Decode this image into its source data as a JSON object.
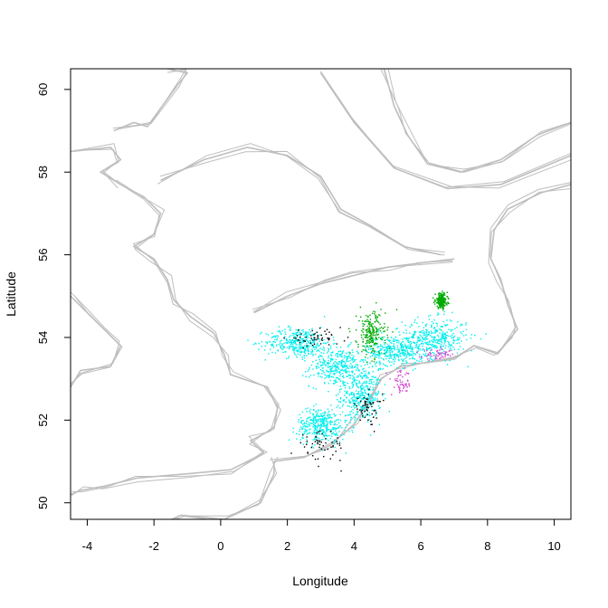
{
  "chart_data": {
    "type": "scatter",
    "title": "",
    "xlabel": "Longitude",
    "ylabel": "Latitude",
    "xlim": [
      -4.5,
      10.5
    ],
    "ylim": [
      49.6,
      60.5
    ],
    "x_ticks": [
      -4,
      -2,
      0,
      2,
      4,
      6,
      8,
      10
    ],
    "y_ticks": [
      50,
      52,
      54,
      56,
      58,
      60
    ],
    "grid": false,
    "legend": "none",
    "colors": {
      "coastline_bathymetry": "#bebebe",
      "cyan_points": "#00eeee",
      "green_points": "#00aa00",
      "magenta_points": "#d040d0",
      "black_points": "#000000"
    },
    "coastline_lines": [
      {
        "name": "scotland-east-coast",
        "points": [
          [
            -3.0,
            57.7
          ],
          [
            -2.3,
            57.4
          ],
          [
            -1.8,
            57.0
          ],
          [
            -2.0,
            56.5
          ],
          [
            -2.6,
            56.2
          ],
          [
            -2.0,
            55.9
          ],
          [
            -1.6,
            55.4
          ],
          [
            -1.4,
            54.9
          ],
          [
            -0.9,
            54.5
          ],
          [
            -0.2,
            54.1
          ],
          [
            0.1,
            53.6
          ],
          [
            0.3,
            53.1
          ],
          [
            1.4,
            52.8
          ],
          [
            1.7,
            52.3
          ],
          [
            1.6,
            51.8
          ],
          [
            0.9,
            51.5
          ],
          [
            1.3,
            51.2
          ],
          [
            0.3,
            50.8
          ],
          [
            -1.0,
            50.7
          ],
          [
            -2.5,
            50.6
          ],
          [
            -3.5,
            50.4
          ],
          [
            -4.2,
            50.3
          ],
          [
            -4.5,
            50.2
          ]
        ]
      },
      {
        "name": "north-scotland",
        "points": [
          [
            -4.5,
            58.5
          ],
          [
            -3.3,
            58.6
          ],
          [
            -3.0,
            58.3
          ],
          [
            -3.6,
            58.0
          ],
          [
            -3.0,
            57.7
          ]
        ]
      },
      {
        "name": "orkney-shetland",
        "points": [
          [
            -3.2,
            59.0
          ],
          [
            -2.6,
            59.2
          ],
          [
            -2.2,
            59.1
          ],
          [
            -1.3,
            60.1
          ],
          [
            -1.0,
            60.4
          ],
          [
            -1.6,
            60.5
          ]
        ]
      },
      {
        "name": "netherlands-germany-coast",
        "points": [
          [
            1.6,
            51.0
          ],
          [
            2.5,
            51.1
          ],
          [
            3.3,
            51.4
          ],
          [
            4.0,
            51.9
          ],
          [
            4.5,
            52.5
          ],
          [
            4.8,
            53.0
          ],
          [
            5.4,
            53.3
          ],
          [
            6.2,
            53.4
          ],
          [
            7.0,
            53.5
          ],
          [
            7.6,
            53.8
          ],
          [
            8.3,
            53.6
          ],
          [
            8.6,
            53.9
          ],
          [
            8.9,
            54.2
          ],
          [
            8.6,
            54.8
          ],
          [
            8.4,
            55.4
          ],
          [
            8.1,
            55.9
          ],
          [
            8.2,
            56.6
          ],
          [
            8.6,
            57.1
          ],
          [
            9.6,
            57.5
          ],
          [
            10.5,
            57.7
          ]
        ]
      },
      {
        "name": "norway-coast",
        "points": [
          [
            4.9,
            60.5
          ],
          [
            5.2,
            59.6
          ],
          [
            5.6,
            58.9
          ],
          [
            6.2,
            58.2
          ],
          [
            7.2,
            58.0
          ],
          [
            8.4,
            58.3
          ],
          [
            9.5,
            58.9
          ],
          [
            10.5,
            59.2
          ]
        ]
      },
      {
        "name": "norwegian-trench",
        "points": [
          [
            3.0,
            60.4
          ],
          [
            4.0,
            59.2
          ],
          [
            5.2,
            58.1
          ],
          [
            6.8,
            57.6
          ],
          [
            8.4,
            57.7
          ],
          [
            10.5,
            58.4
          ]
        ]
      },
      {
        "name": "dogger-bank",
        "points": [
          [
            1.0,
            54.6
          ],
          [
            2.0,
            55.0
          ],
          [
            3.0,
            55.3
          ],
          [
            4.0,
            55.5
          ],
          [
            5.0,
            55.7
          ],
          [
            6.0,
            55.8
          ],
          [
            7.0,
            55.9
          ]
        ]
      },
      {
        "name": "central-contour",
        "points": [
          [
            -1.8,
            57.8
          ],
          [
            -0.5,
            58.3
          ],
          [
            0.8,
            58.6
          ],
          [
            2.0,
            58.4
          ],
          [
            3.0,
            57.9
          ],
          [
            3.6,
            57.1
          ],
          [
            4.5,
            56.7
          ],
          [
            5.5,
            56.2
          ],
          [
            6.6,
            56.0
          ]
        ]
      },
      {
        "name": "irish-sea-west",
        "points": [
          [
            -4.5,
            55.0
          ],
          [
            -4.0,
            54.6
          ],
          [
            -3.5,
            54.2
          ],
          [
            -3.0,
            53.8
          ],
          [
            -3.3,
            53.3
          ],
          [
            -4.2,
            53.2
          ],
          [
            -4.5,
            52.8
          ]
        ]
      },
      {
        "name": "channel-south",
        "points": [
          [
            -4.5,
            48.8
          ],
          [
            -2.0,
            49.4
          ],
          [
            -1.2,
            49.7
          ],
          [
            0.1,
            49.6
          ],
          [
            1.2,
            50.0
          ],
          [
            1.6,
            50.7
          ],
          [
            1.6,
            51.0
          ]
        ]
      }
    ],
    "point_clouds": [
      {
        "color_key": "cyan_points",
        "count": 2200,
        "regions": [
          [
            4.2,
            52.6,
            0.5,
            0.55
          ],
          [
            3.5,
            53.3,
            0.7,
            0.4
          ],
          [
            2.3,
            53.9,
            0.8,
            0.3
          ],
          [
            6.4,
            54.0,
            0.8,
            0.4
          ],
          [
            5.2,
            53.7,
            0.7,
            0.3
          ],
          [
            3.0,
            51.9,
            0.6,
            0.35
          ]
        ]
      },
      {
        "color_key": "green_points",
        "count": 450,
        "regions": [
          [
            4.5,
            54.1,
            0.35,
            0.45
          ],
          [
            6.6,
            54.9,
            0.15,
            0.15
          ]
        ]
      },
      {
        "color_key": "black_points",
        "count": 160,
        "regions": [
          [
            4.4,
            52.3,
            0.35,
            0.3
          ],
          [
            2.8,
            54.0,
            0.7,
            0.15
          ],
          [
            3.0,
            51.4,
            0.6,
            0.3
          ]
        ]
      },
      {
        "color_key": "magenta_points",
        "count": 110,
        "regions": [
          [
            5.4,
            52.9,
            0.25,
            0.25
          ],
          [
            6.5,
            53.6,
            0.4,
            0.1
          ]
        ]
      }
    ]
  }
}
